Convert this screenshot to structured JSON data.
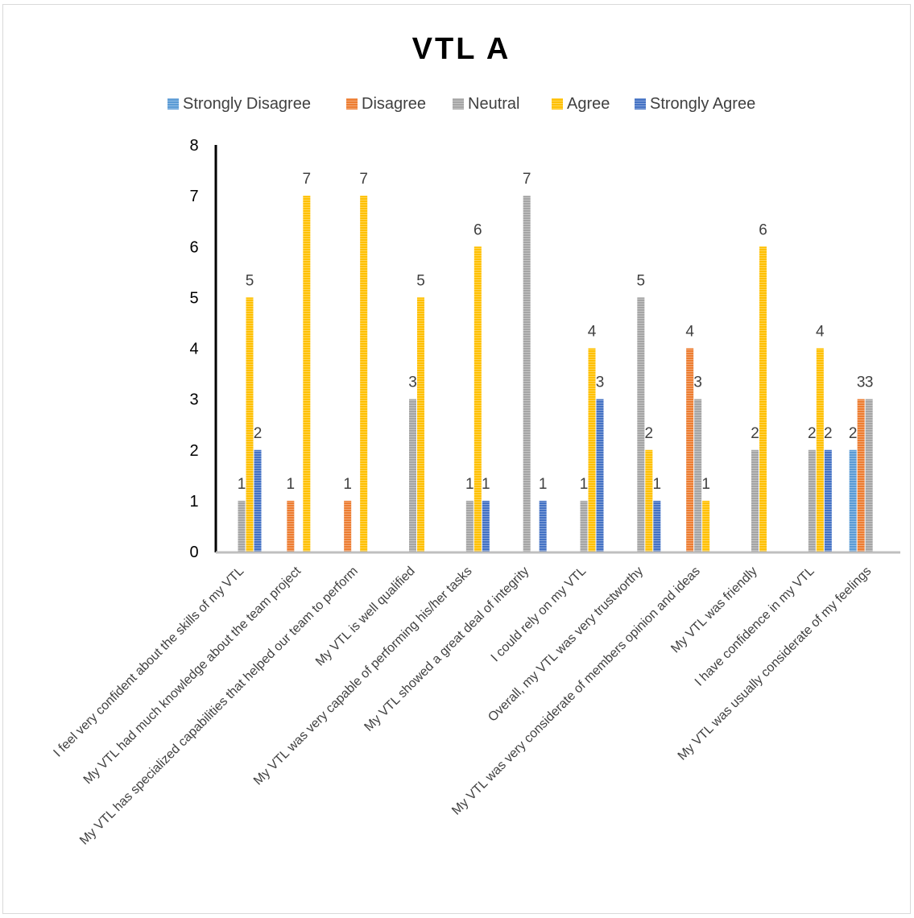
{
  "chart_data": {
    "type": "bar",
    "title": "VTL A",
    "categories": [
      "I feel very confident about the skills of my VTL",
      "My VTL had much knowledge about the team project",
      "My VTL has specialized capabilities that helped our team to perform",
      "My VTL is well qualified",
      "My VTL was very capable of performing his/her tasks",
      "My VTL showed a great deal of integrity",
      "I could rely on my VTL",
      "Overall, my VTL was very trustworthy",
      "My VTL was very considerate of members opinion and ideas",
      "My VTL was friendly",
      "I have confidence in my VTL",
      "My VTL was usually considerate of my feelings"
    ],
    "series": [
      {
        "name": "Strongly Disagree",
        "color": "#5b9bd5",
        "values": [
          null,
          null,
          null,
          null,
          null,
          null,
          null,
          null,
          null,
          null,
          null,
          2
        ]
      },
      {
        "name": "Disagree",
        "color": "#ed7d31",
        "values": [
          null,
          1,
          1,
          null,
          null,
          null,
          null,
          null,
          4,
          null,
          null,
          3
        ]
      },
      {
        "name": "Neutral",
        "color": "#a5a5a5",
        "values": [
          1,
          null,
          null,
          3,
          1,
          7,
          1,
          5,
          3,
          2,
          2,
          3
        ]
      },
      {
        "name": "Agree",
        "color": "#ffc000",
        "values": [
          5,
          7,
          7,
          5,
          6,
          null,
          4,
          2,
          1,
          6,
          4,
          null
        ]
      },
      {
        "name": "Strongly Agree",
        "color": "#4472c4",
        "values": [
          2,
          null,
          null,
          null,
          1,
          1,
          3,
          1,
          null,
          null,
          2,
          null
        ]
      }
    ],
    "ylim": [
      0,
      8
    ],
    "yticks": [
      "0",
      "1",
      "2",
      "3",
      "4",
      "5",
      "6",
      "7",
      "8"
    ],
    "legend_position": "top",
    "grid": false
  }
}
